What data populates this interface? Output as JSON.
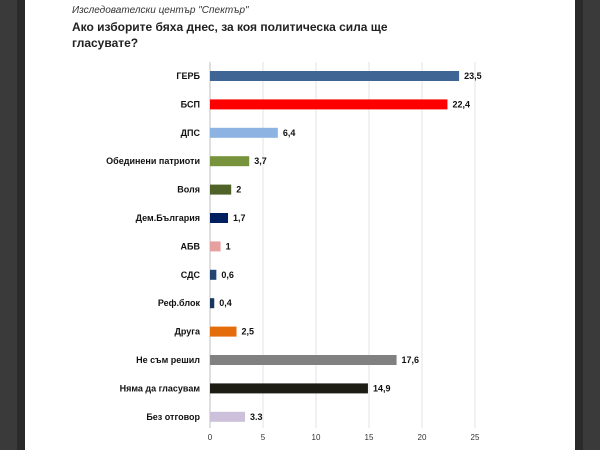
{
  "source": "Изследователски център \"Спектър\"",
  "chart_data": {
    "type": "bar",
    "orientation": "horizontal",
    "title": "Ако изборите бяха днес, за коя политическа сила ще гласувате?",
    "xlim": [
      0,
      25
    ],
    "xticks": [
      0,
      5,
      10,
      15,
      20,
      25
    ],
    "grid": true,
    "categories": [
      "ГЕРБ",
      "БСП",
      "ДПС",
      "Обединени патриоти",
      "Воля",
      "Дем.България",
      "АБВ",
      "СДС",
      "Реф.блок",
      "Друга",
      "Не съм решил",
      "Няма да гласувам",
      "Без отговор"
    ],
    "values": [
      23.5,
      22.4,
      6.4,
      3.7,
      2,
      1.7,
      1,
      0.6,
      0.4,
      2.5,
      17.6,
      14.9,
      3.3
    ],
    "value_labels": [
      "23,5",
      "22,4",
      "6,4",
      "3,7",
      "2",
      "1,7",
      "1",
      "0,6",
      "0,4",
      "2,5",
      "17,6",
      "14,9",
      "3.3"
    ],
    "colors": [
      "#3f6595",
      "#ff0000",
      "#8db3e2",
      "#77933c",
      "#4f6228",
      "#002060",
      "#e6a0a0",
      "#244472",
      "#17375e",
      "#e46c0a",
      "#808080",
      "#1c1c14",
      "#ccc0da"
    ]
  }
}
